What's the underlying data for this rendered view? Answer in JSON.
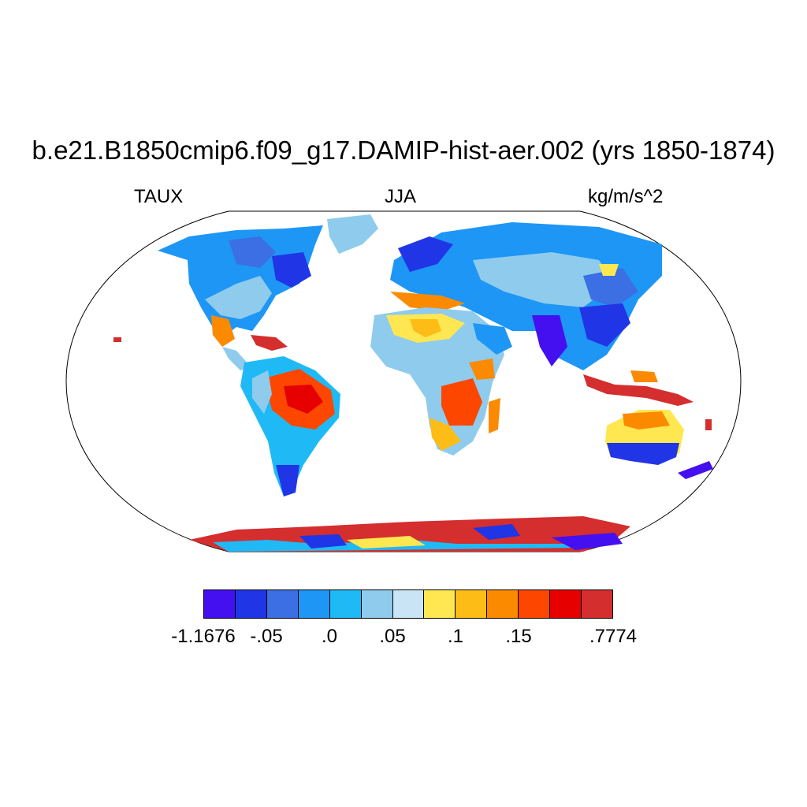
{
  "title": "b.e21.B1850cmip6.f09_g17.DAMIP-hist-aer.002 (yrs 1850-1874)",
  "variable": "TAUX",
  "season": "JJA",
  "units": "kg/m/s^2",
  "colorbar": {
    "colors": [
      "#4410f0",
      "#2035e6",
      "#3b6fe3",
      "#1e96f5",
      "#1fbaf5",
      "#8fcbed",
      "#c9e4f4",
      "#ffe751",
      "#fdbd16",
      "#fb8a00",
      "#fd4700",
      "#e60000",
      "#d42e2e"
    ],
    "tick_labels": [
      "-1.1676",
      "-.05",
      ".0",
      ".05",
      ".1",
      ".15",
      ".7774"
    ]
  },
  "map_colors": {
    "ocean": "#ffffff",
    "land_outline": "#000000",
    "frame": "#000000"
  }
}
